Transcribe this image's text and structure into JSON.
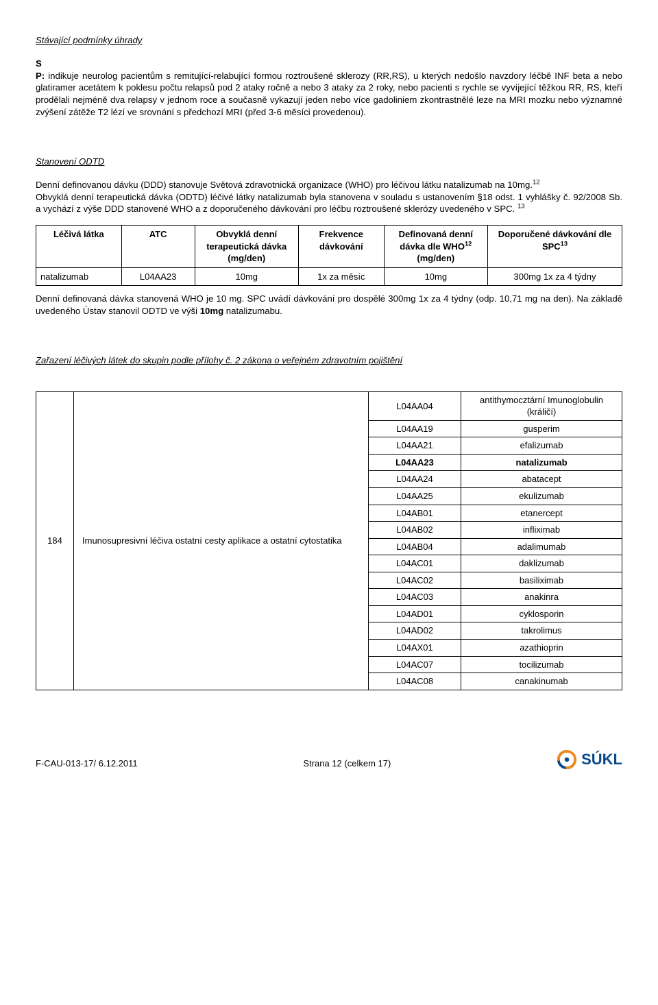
{
  "section1": {
    "heading": "Stávající podmínky úhrady",
    "s_label": "S",
    "p_label": "P:",
    "p_text": "indikuje neurolog pacientům s remitující-relabující formou roztroušené sklerozy (RR,RS), u kterých nedošlo navzdory léčbě INF beta a nebo glatiramer acetátem k poklesu počtu relapsů pod 2 ataky ročně a nebo 3 ataky za 2 roky, nebo pacienti s rychle se vyvíjející těžkou RR, RS, kteří prodělali nejméně dva relapsy v jednom roce a současně vykazují jeden nebo více gadoliniem zkontrastnělé leze na MRI mozku nebo významné zvýšení zátěže T2 lézí ve srovnání s předchozí MRI (před 3-6 měsíci provedenou)."
  },
  "section2": {
    "heading": "Stanovení ODTD",
    "para1_a": "Denní definovanou dávku (DDD) stanovuje Světová zdravotnická organizace (WHO) pro léčivou látku natalizumab na 10mg.",
    "sup1": "12",
    "para2": "Obvyklá denní terapeutická dávka (ODTD) léčivé látky natalizumab byla stanovena v souladu s ustanovením §18 odst. 1 vyhlášky č. 92/2008 Sb. a vychází z výše DDD stanovené WHO a z doporučeného dávkování pro léčbu roztroušené sklerózy uvedeného v SPC. ",
    "sup2": "13"
  },
  "dosage_table": {
    "headers": {
      "c1": "Léčivá látka",
      "c2": "ATC",
      "c3": "Obvyklá denní terapeutická dávka (mg/den)",
      "c4": "Frekvence dávkování",
      "c5_l1": "Definovaná denní dávka dle WHO",
      "c5_sup": "12",
      "c5_l2": "(mg/den)",
      "c6_l1": "Doporučené dávkování dle SPC",
      "c6_sup": "13"
    },
    "row": {
      "c1": "natalizumab",
      "c2": "L04AA23",
      "c3": "10mg",
      "c4": "1x za měsíc",
      "c5": "10mg",
      "c6": "300mg 1x za 4 týdny"
    }
  },
  "para_after_table": "Denní definovaná dávka stanovená WHO je 10 mg. SPC uvádí dávkování pro dospělé 300mg 1x za 4 týdny (odp. 10,71 mg na den). Na základě uvedeného Ústav stanovil ODTD ve výši ",
  "para_after_table_bold": "10mg",
  "para_after_table_tail": " natalizumabu.",
  "section3": {
    "heading": "Zařazení léčivých látek do skupin podle přílohy č. 2 zákona o veřejném zdravotním pojištění"
  },
  "atc": {
    "group_no": "184",
    "group_name": "Imunosupresivní léčiva ostatní cesty aplikace a ostatní cytostatika",
    "rows": [
      {
        "code": "L04AA04",
        "name": "antithymocztární Imunoglobulin (králičí)",
        "bold": false
      },
      {
        "code": "L04AA19",
        "name": "gusperim",
        "bold": false
      },
      {
        "code": "L04AA21",
        "name": "efalizumab",
        "bold": false
      },
      {
        "code": "L04AA23",
        "name": "natalizumab",
        "bold": true
      },
      {
        "code": "L04AA24",
        "name": "abatacept",
        "bold": false
      },
      {
        "code": "L04AA25",
        "name": "ekulizumab",
        "bold": false
      },
      {
        "code": "L04AB01",
        "name": "etanercept",
        "bold": false
      },
      {
        "code": "L04AB02",
        "name": "infliximab",
        "bold": false
      },
      {
        "code": "L04AB04",
        "name": "adalimumab",
        "bold": false
      },
      {
        "code": "L04AC01",
        "name": "daklizumab",
        "bold": false
      },
      {
        "code": "L04AC02",
        "name": "basiliximab",
        "bold": false
      },
      {
        "code": "L04AC03",
        "name": "anakinra",
        "bold": false
      },
      {
        "code": "L04AD01",
        "name": "cyklosporin",
        "bold": false
      },
      {
        "code": "L04AD02",
        "name": "takrolimus",
        "bold": false
      },
      {
        "code": "L04AX01",
        "name": "azathioprin",
        "bold": false
      },
      {
        "code": "L04AC07",
        "name": "tocilizumab",
        "bold": false
      },
      {
        "code": "L04AC08",
        "name": "canakinumab",
        "bold": false
      }
    ]
  },
  "footer": {
    "left": "F-CAU-013-17/ 6.12.2011",
    "center": "Strana 12 (celkem 17)",
    "logo_text": "SÚKL"
  },
  "colors": {
    "text": "#000000",
    "logo_blue": "#0a4a8a",
    "logo_orange": "#f08a1d"
  }
}
